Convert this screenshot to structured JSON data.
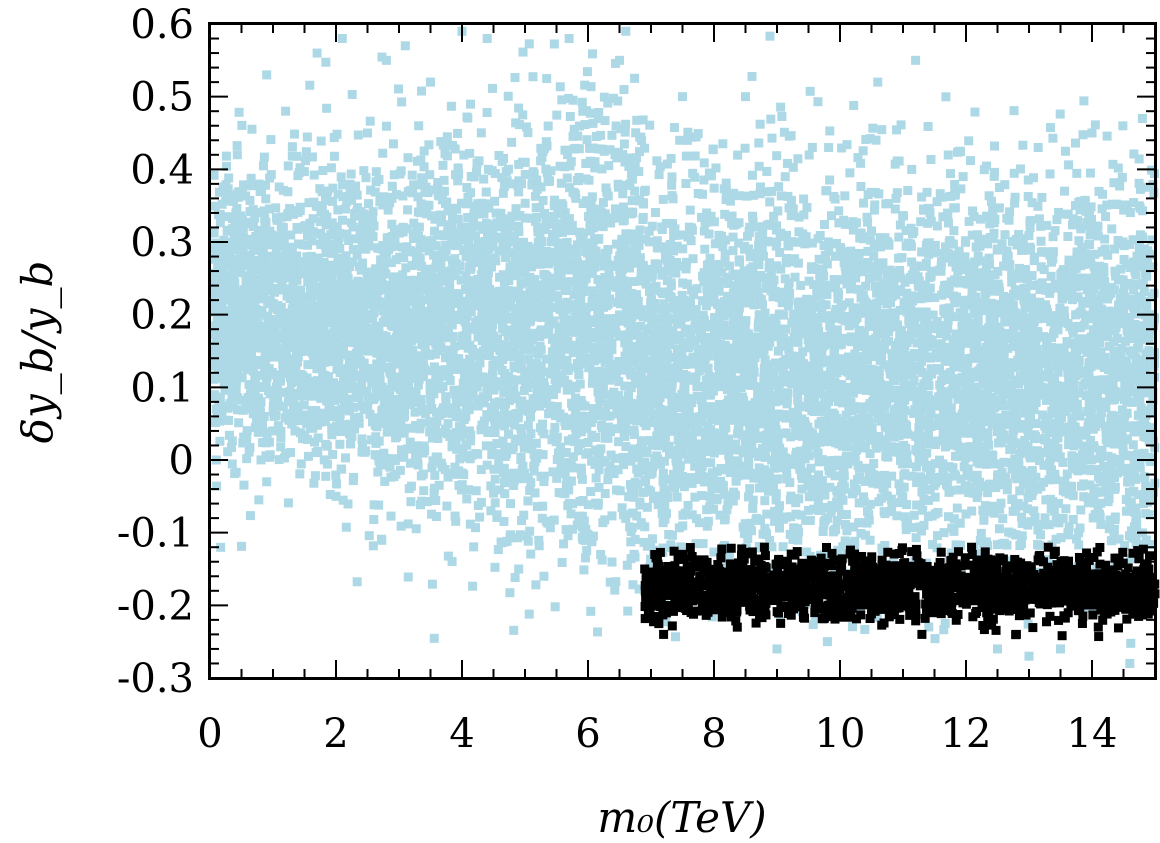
{
  "chart_data": {
    "type": "scatter",
    "title": "",
    "xlabel": "m₀(TeV)",
    "ylabel": "δy_b/y_b",
    "xlim": [
      0,
      15
    ],
    "ylim": [
      -0.3,
      0.6
    ],
    "x_ticks": [
      0,
      2,
      4,
      6,
      8,
      10,
      12,
      14
    ],
    "y_ticks": [
      -0.3,
      -0.2,
      -0.1,
      0,
      0.1,
      0.2,
      0.3,
      0.4,
      0.5,
      0.6
    ],
    "x_tick_labels": [
      "0",
      "2",
      "4",
      "6",
      "8",
      "10",
      "12",
      "14"
    ],
    "y_tick_labels": [
      "-0.3",
      "-0.2",
      "-0.1",
      "0",
      "0.1",
      "0.2",
      "0.3",
      "0.4",
      "0.5",
      "0.6"
    ],
    "grid": false,
    "legend": "none",
    "marker": "square",
    "colors": {
      "all_points": "#add8e6",
      "selected_points": "#000000",
      "frame": "#000000"
    },
    "series": [
      {
        "color": "#add8e6",
        "description_of_density": "dense cloud; centered near 0.2 at low m0, widening with m0",
        "points": [
          [
            0.1,
            0.0
          ],
          [
            0.1,
            0.07
          ],
          [
            0.2,
            0.28
          ],
          [
            0.3,
            0.22
          ],
          [
            0.4,
            0.12
          ],
          [
            0.9,
            -0.03
          ],
          [
            0.9,
            0.53
          ],
          [
            1.0,
            0.04
          ],
          [
            1.2,
            0.48
          ],
          [
            1.7,
            0.56
          ],
          [
            2.0,
            -0.05
          ],
          [
            2.1,
            0.58
          ],
          [
            2.5,
            0.45
          ],
          [
            2.8,
            0.55
          ],
          [
            3.1,
            0.57
          ],
          [
            3.5,
            0.52
          ],
          [
            4.0,
            0.59
          ],
          [
            4.4,
            0.58
          ],
          [
            4.9,
            -0.15
          ],
          [
            5.3,
            -0.16
          ],
          [
            5.7,
            0.58
          ],
          [
            6.2,
            -0.13
          ],
          [
            6.5,
            0.55
          ],
          [
            6.6,
            0.59
          ],
          [
            7.5,
            0.5
          ],
          [
            8.5,
            0.5
          ],
          [
            9.0,
            -0.26
          ],
          [
            9.8,
            -0.25
          ],
          [
            10.6,
            0.52
          ],
          [
            11.2,
            0.55
          ],
          [
            12.5,
            -0.26
          ],
          [
            13.0,
            -0.27
          ],
          [
            13.5,
            -0.26
          ],
          [
            14.0,
            0.45
          ],
          [
            14.6,
            -0.28
          ],
          [
            14.8,
            0.47
          ]
        ]
      },
      {
        "color": "#000000",
        "description_of_density": "dense band between m0 = 6.9 and 15 TeV, δy_b/y_b ≈ -0.24 to -0.12",
        "points": [
          [
            6.9,
            -0.15
          ],
          [
            7.2,
            -0.24
          ],
          [
            7.5,
            -0.13
          ],
          [
            8.0,
            -0.2
          ],
          [
            8.8,
            -0.12
          ],
          [
            9.6,
            -0.21
          ],
          [
            10.4,
            -0.14
          ],
          [
            11.3,
            -0.24
          ],
          [
            12.1,
            -0.13
          ],
          [
            12.8,
            -0.24
          ],
          [
            13.4,
            -0.13
          ],
          [
            14.1,
            -0.23
          ],
          [
            14.9,
            -0.15
          ]
        ]
      }
    ]
  }
}
